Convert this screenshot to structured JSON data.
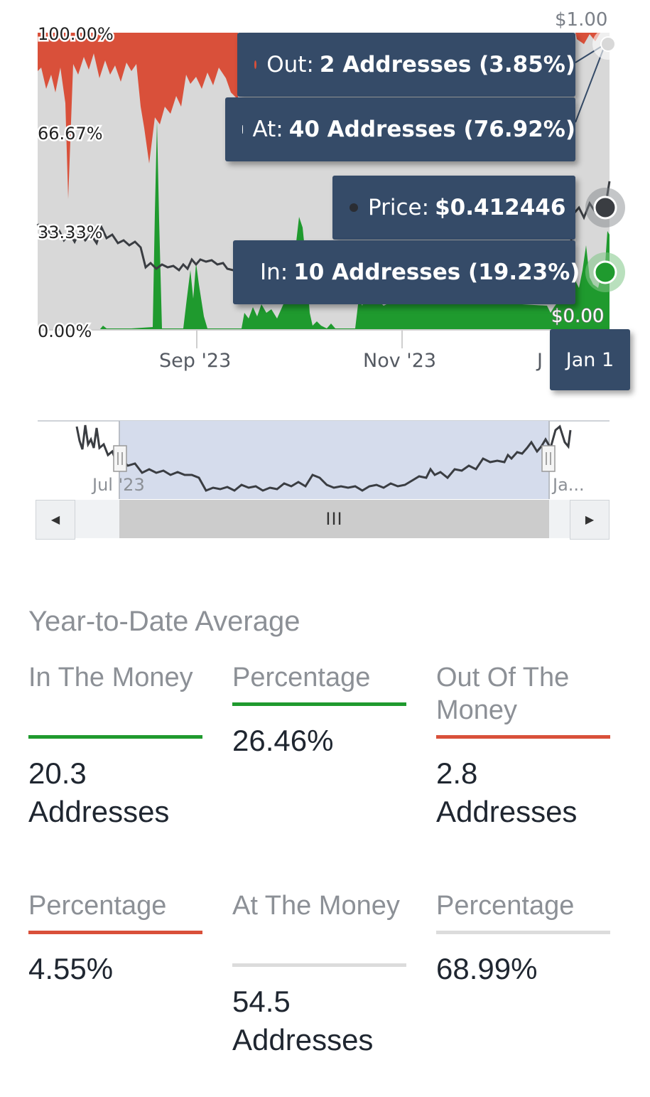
{
  "chart": {
    "y_labels": [
      "100.00%",
      "66.67%",
      "33.33%",
      "0.00%"
    ],
    "x_labels": [
      "Sep '23",
      "Nov '23",
      "J"
    ],
    "price_labels": {
      "top": "$1.00",
      "bottom": "$0.00"
    },
    "colors": {
      "out": "#d9503a",
      "at": "#d8d8d8",
      "in": "#1f9a2e",
      "price": "#3a3d42",
      "tooltip_bg": "#354b68"
    },
    "tooltips": {
      "out": {
        "label": "Out:",
        "value": "2 Addresses (3.85%)"
      },
      "at": {
        "label": "At:",
        "value": "40 Addresses (76.92%)"
      },
      "price": {
        "label": "Price:",
        "value": "$0.412446"
      },
      "in": {
        "label": "In:",
        "value": "10 Addresses (19.23%)"
      },
      "date": "Jan 1"
    }
  },
  "navigator": {
    "labels": [
      "Jul '23",
      "Ja..."
    ],
    "left_button": "◀",
    "right_button": "▶",
    "thumb_glyph": "III"
  },
  "stats": {
    "title": "Year-to-Date Average",
    "cells": [
      {
        "label": "In The Money",
        "value": "20.3 Addresses",
        "color": "#1f9a2e"
      },
      {
        "label": "Percentage",
        "value": "26.46%",
        "color": "#1f9a2e"
      },
      {
        "label": "Out Of The Money",
        "value": "2.8 Addresses",
        "color": "#d9503a"
      },
      {
        "label": "Percentage",
        "value": "4.55%",
        "color": "#d9503a"
      },
      {
        "label": "At The Money",
        "value": "54.5 Addresses",
        "color": "#d8d8d8"
      },
      {
        "label": "Percentage",
        "value": "68.99%",
        "color": "#d8d8d8"
      }
    ]
  }
}
